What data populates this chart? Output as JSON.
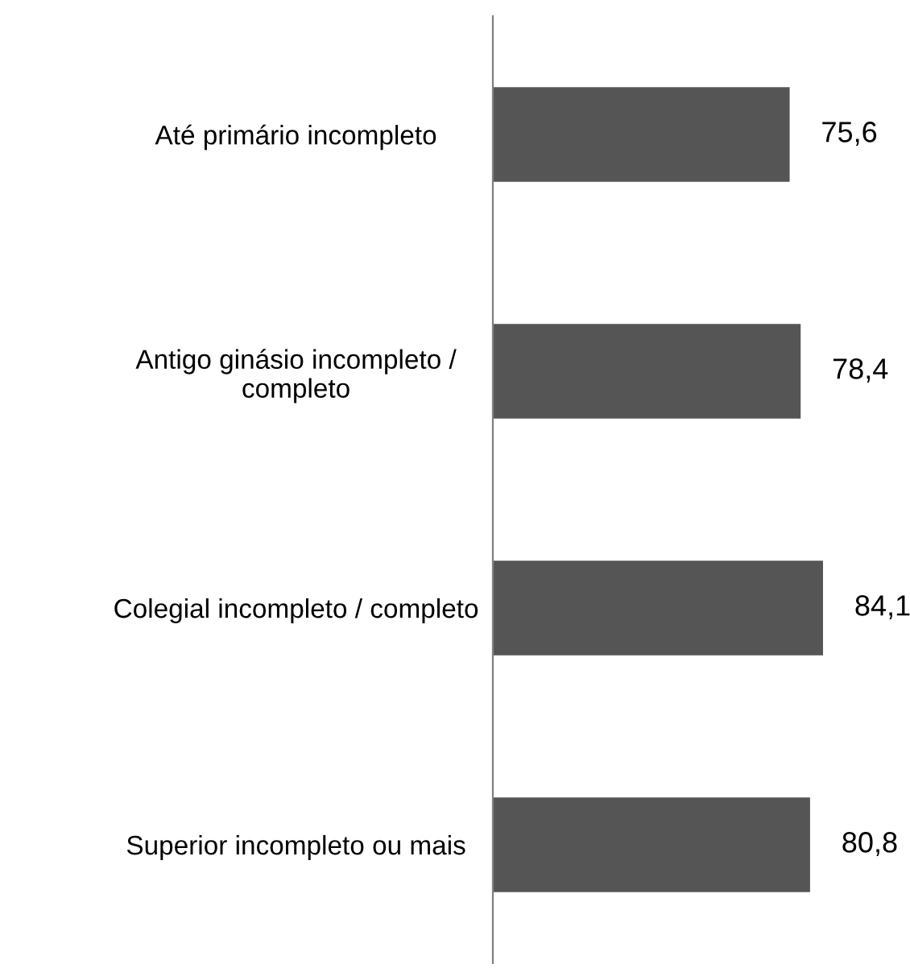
{
  "chart_data": {
    "type": "bar",
    "orientation": "horizontal",
    "categories": [
      "Até primário incompleto",
      "Antigo ginásio incompleto /\ncompleto",
      "Colegial incompleto / completo",
      "Superior incompleto ou mais"
    ],
    "values": [
      75.6,
      78.4,
      84.1,
      80.8
    ],
    "value_labels": [
      "75,6",
      "78,4",
      "84,1",
      "80,8"
    ],
    "color": "#555555",
    "tick_labels": "y",
    "grid": false,
    "legend": false
  }
}
